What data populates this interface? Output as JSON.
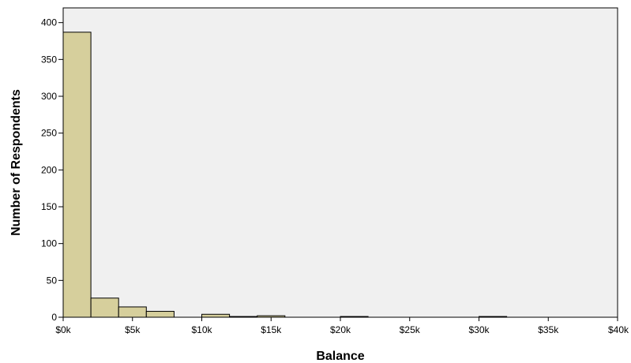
{
  "colors": {
    "plot_background": "#f0f0f0",
    "bar_fill": "#d6cf9c",
    "bar_stroke": "#000000",
    "axis": "#000000"
  },
  "chart_data": {
    "type": "bar",
    "xlabel": "Balance",
    "ylabel": "Number of Respondents",
    "xlim": [
      0,
      40000
    ],
    "ylim": [
      0,
      420
    ],
    "grid": false,
    "bin_width": 2000,
    "x_ticks": [
      {
        "value": 0,
        "label": "$0k"
      },
      {
        "value": 5000,
        "label": "$5k"
      },
      {
        "value": 10000,
        "label": "$10k"
      },
      {
        "value": 15000,
        "label": "$15k"
      },
      {
        "value": 20000,
        "label": "$20k"
      },
      {
        "value": 25000,
        "label": "$25k"
      },
      {
        "value": 30000,
        "label": "$30k"
      },
      {
        "value": 35000,
        "label": "$35k"
      },
      {
        "value": 40000,
        "label": "$40k"
      }
    ],
    "y_ticks": [
      {
        "value": 0,
        "label": "0"
      },
      {
        "value": 50,
        "label": "50"
      },
      {
        "value": 100,
        "label": "100"
      },
      {
        "value": 150,
        "label": "150"
      },
      {
        "value": 200,
        "label": "200"
      },
      {
        "value": 250,
        "label": "250"
      },
      {
        "value": 300,
        "label": "300"
      },
      {
        "value": 350,
        "label": "350"
      },
      {
        "value": 400,
        "label": "400"
      }
    ],
    "bins": [
      {
        "start": 0,
        "end": 2000,
        "count": 387
      },
      {
        "start": 2000,
        "end": 4000,
        "count": 26
      },
      {
        "start": 4000,
        "end": 6000,
        "count": 14
      },
      {
        "start": 6000,
        "end": 8000,
        "count": 8
      },
      {
        "start": 10000,
        "end": 12000,
        "count": 4
      },
      {
        "start": 12000,
        "end": 14000,
        "count": 1
      },
      {
        "start": 14000,
        "end": 16000,
        "count": 2
      },
      {
        "start": 20000,
        "end": 22000,
        "count": 1
      },
      {
        "start": 30000,
        "end": 32000,
        "count": 1
      }
    ]
  }
}
